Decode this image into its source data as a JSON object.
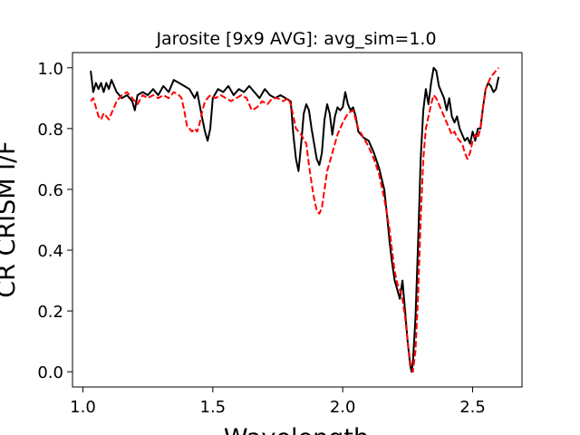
{
  "chart_data": {
    "type": "line",
    "title": "Jarosite [9x9 AVG]: avg_sim=1.0",
    "xlabel": "Wavelength",
    "ylabel": "CR CRISM I/F",
    "xlim": [
      0.96,
      2.69
    ],
    "ylim": [
      -0.05,
      1.05
    ],
    "xticks": [
      1.0,
      1.5,
      2.0,
      2.5
    ],
    "xtick_labels": [
      "1.0",
      "1.5",
      "2.0",
      "2.5"
    ],
    "yticks": [
      0.0,
      0.2,
      0.4,
      0.6,
      0.8,
      1.0
    ],
    "ytick_labels": [
      "0.0",
      "0.2",
      "0.4",
      "0.6",
      "0.8",
      "1.0"
    ],
    "grid": false,
    "series": [
      {
        "style": "solid",
        "color": "#000000",
        "points": [
          [
            1.03,
            0.99
          ],
          [
            1.04,
            0.92
          ],
          [
            1.05,
            0.95
          ],
          [
            1.06,
            0.93
          ],
          [
            1.07,
            0.95
          ],
          [
            1.08,
            0.92
          ],
          [
            1.09,
            0.95
          ],
          [
            1.1,
            0.93
          ],
          [
            1.11,
            0.96
          ],
          [
            1.12,
            0.94
          ],
          [
            1.13,
            0.92
          ],
          [
            1.15,
            0.9
          ],
          [
            1.17,
            0.91
          ],
          [
            1.19,
            0.89
          ],
          [
            1.2,
            0.86
          ],
          [
            1.21,
            0.91
          ],
          [
            1.23,
            0.92
          ],
          [
            1.25,
            0.91
          ],
          [
            1.27,
            0.93
          ],
          [
            1.29,
            0.91
          ],
          [
            1.31,
            0.94
          ],
          [
            1.33,
            0.92
          ],
          [
            1.35,
            0.96
          ],
          [
            1.37,
            0.95
          ],
          [
            1.39,
            0.94
          ],
          [
            1.41,
            0.93
          ],
          [
            1.43,
            0.9
          ],
          [
            1.44,
            0.92
          ],
          [
            1.46,
            0.83
          ],
          [
            1.47,
            0.79
          ],
          [
            1.48,
            0.76
          ],
          [
            1.49,
            0.8
          ],
          [
            1.5,
            0.9
          ],
          [
            1.52,
            0.93
          ],
          [
            1.54,
            0.92
          ],
          [
            1.56,
            0.94
          ],
          [
            1.58,
            0.91
          ],
          [
            1.6,
            0.93
          ],
          [
            1.62,
            0.92
          ],
          [
            1.64,
            0.94
          ],
          [
            1.66,
            0.92
          ],
          [
            1.68,
            0.9
          ],
          [
            1.7,
            0.93
          ],
          [
            1.72,
            0.91
          ],
          [
            1.74,
            0.9
          ],
          [
            1.76,
            0.91
          ],
          [
            1.78,
            0.9
          ],
          [
            1.8,
            0.89
          ],
          [
            1.81,
            0.78
          ],
          [
            1.82,
            0.7
          ],
          [
            1.83,
            0.66
          ],
          [
            1.84,
            0.75
          ],
          [
            1.85,
            0.85
          ],
          [
            1.86,
            0.88
          ],
          [
            1.87,
            0.86
          ],
          [
            1.88,
            0.8
          ],
          [
            1.89,
            0.75
          ],
          [
            1.9,
            0.7
          ],
          [
            1.91,
            0.68
          ],
          [
            1.92,
            0.72
          ],
          [
            1.93,
            0.83
          ],
          [
            1.94,
            0.88
          ],
          [
            1.95,
            0.85
          ],
          [
            1.96,
            0.78
          ],
          [
            1.97,
            0.84
          ],
          [
            1.98,
            0.87
          ],
          [
            1.99,
            0.86
          ],
          [
            2.0,
            0.87
          ],
          [
            2.01,
            0.92
          ],
          [
            2.02,
            0.88
          ],
          [
            2.03,
            0.86
          ],
          [
            2.04,
            0.87
          ],
          [
            2.05,
            0.84
          ],
          [
            2.06,
            0.79
          ],
          [
            2.08,
            0.77
          ],
          [
            2.1,
            0.76
          ],
          [
            2.12,
            0.72
          ],
          [
            2.14,
            0.67
          ],
          [
            2.16,
            0.6
          ],
          [
            2.17,
            0.52
          ],
          [
            2.18,
            0.43
          ],
          [
            2.19,
            0.36
          ],
          [
            2.2,
            0.3
          ],
          [
            2.21,
            0.27
          ],
          [
            2.22,
            0.24
          ],
          [
            2.23,
            0.3
          ],
          [
            2.24,
            0.2
          ],
          [
            2.25,
            0.1
          ],
          [
            2.26,
            0.02
          ],
          [
            2.265,
            0.0
          ],
          [
            2.27,
            0.03
          ],
          [
            2.28,
            0.18
          ],
          [
            2.29,
            0.42
          ],
          [
            2.3,
            0.7
          ],
          [
            2.31,
            0.86
          ],
          [
            2.32,
            0.93
          ],
          [
            2.33,
            0.88
          ],
          [
            2.34,
            0.95
          ],
          [
            2.35,
            1.0
          ],
          [
            2.36,
            0.99
          ],
          [
            2.37,
            0.94
          ],
          [
            2.38,
            0.92
          ],
          [
            2.39,
            0.9
          ],
          [
            2.4,
            0.86
          ],
          [
            2.41,
            0.9
          ],
          [
            2.42,
            0.84
          ],
          [
            2.43,
            0.82
          ],
          [
            2.44,
            0.84
          ],
          [
            2.45,
            0.8
          ],
          [
            2.46,
            0.78
          ],
          [
            2.47,
            0.76
          ],
          [
            2.48,
            0.77
          ],
          [
            2.49,
            0.75
          ],
          [
            2.5,
            0.79
          ],
          [
            2.51,
            0.76
          ],
          [
            2.52,
            0.8
          ],
          [
            2.53,
            0.8
          ],
          [
            2.54,
            0.87
          ],
          [
            2.55,
            0.93
          ],
          [
            2.56,
            0.95
          ],
          [
            2.57,
            0.94
          ],
          [
            2.58,
            0.92
          ],
          [
            2.59,
            0.93
          ],
          [
            2.6,
            0.97
          ]
        ]
      },
      {
        "style": "dashed",
        "color": "#ff0000",
        "points": [
          [
            1.03,
            0.89
          ],
          [
            1.04,
            0.9
          ],
          [
            1.05,
            0.87
          ],
          [
            1.06,
            0.84
          ],
          [
            1.07,
            0.83
          ],
          [
            1.08,
            0.85
          ],
          [
            1.09,
            0.84
          ],
          [
            1.1,
            0.83
          ],
          [
            1.11,
            0.85
          ],
          [
            1.12,
            0.87
          ],
          [
            1.13,
            0.89
          ],
          [
            1.15,
            0.91
          ],
          [
            1.17,
            0.92
          ],
          [
            1.19,
            0.9
          ],
          [
            1.21,
            0.88
          ],
          [
            1.23,
            0.91
          ],
          [
            1.25,
            0.9
          ],
          [
            1.27,
            0.91
          ],
          [
            1.29,
            0.9
          ],
          [
            1.31,
            0.91
          ],
          [
            1.33,
            0.9
          ],
          [
            1.35,
            0.92
          ],
          [
            1.37,
            0.91
          ],
          [
            1.38,
            0.9
          ],
          [
            1.39,
            0.86
          ],
          [
            1.4,
            0.81
          ],
          [
            1.41,
            0.8
          ],
          [
            1.42,
            0.79
          ],
          [
            1.43,
            0.8
          ],
          [
            1.44,
            0.79
          ],
          [
            1.45,
            0.82
          ],
          [
            1.46,
            0.86
          ],
          [
            1.47,
            0.89
          ],
          [
            1.49,
            0.91
          ],
          [
            1.51,
            0.9
          ],
          [
            1.53,
            0.91
          ],
          [
            1.55,
            0.9
          ],
          [
            1.57,
            0.89
          ],
          [
            1.59,
            0.9
          ],
          [
            1.61,
            0.91
          ],
          [
            1.63,
            0.9
          ],
          [
            1.64,
            0.88
          ],
          [
            1.65,
            0.86
          ],
          [
            1.67,
            0.87
          ],
          [
            1.69,
            0.89
          ],
          [
            1.71,
            0.88
          ],
          [
            1.73,
            0.9
          ],
          [
            1.75,
            0.9
          ],
          [
            1.77,
            0.89
          ],
          [
            1.79,
            0.9
          ],
          [
            1.8,
            0.88
          ],
          [
            1.82,
            0.8
          ],
          [
            1.84,
            0.78
          ],
          [
            1.86,
            0.75
          ],
          [
            1.87,
            0.68
          ],
          [
            1.88,
            0.62
          ],
          [
            1.89,
            0.57
          ],
          [
            1.9,
            0.53
          ],
          [
            1.91,
            0.52
          ],
          [
            1.92,
            0.54
          ],
          [
            1.93,
            0.6
          ],
          [
            1.94,
            0.66
          ],
          [
            1.96,
            0.72
          ],
          [
            1.98,
            0.78
          ],
          [
            2.0,
            0.82
          ],
          [
            2.02,
            0.85
          ],
          [
            2.04,
            0.86
          ],
          [
            2.05,
            0.83
          ],
          [
            2.06,
            0.8
          ],
          [
            2.08,
            0.77
          ],
          [
            2.1,
            0.74
          ],
          [
            2.12,
            0.7
          ],
          [
            2.14,
            0.65
          ],
          [
            2.16,
            0.57
          ],
          [
            2.18,
            0.47
          ],
          [
            2.19,
            0.4
          ],
          [
            2.2,
            0.33
          ],
          [
            2.21,
            0.29
          ],
          [
            2.22,
            0.27
          ],
          [
            2.23,
            0.24
          ],
          [
            2.24,
            0.18
          ],
          [
            2.25,
            0.1
          ],
          [
            2.26,
            0.03
          ],
          [
            2.27,
            0.0
          ],
          [
            2.28,
            0.07
          ],
          [
            2.29,
            0.25
          ],
          [
            2.3,
            0.5
          ],
          [
            2.31,
            0.7
          ],
          [
            2.32,
            0.8
          ],
          [
            2.33,
            0.84
          ],
          [
            2.34,
            0.88
          ],
          [
            2.35,
            0.91
          ],
          [
            2.36,
            0.9
          ],
          [
            2.37,
            0.88
          ],
          [
            2.38,
            0.86
          ],
          [
            2.39,
            0.84
          ],
          [
            2.4,
            0.82
          ],
          [
            2.41,
            0.8
          ],
          [
            2.42,
            0.78
          ],
          [
            2.43,
            0.79
          ],
          [
            2.44,
            0.77
          ],
          [
            2.45,
            0.76
          ],
          [
            2.46,
            0.75
          ],
          [
            2.47,
            0.72
          ],
          [
            2.48,
            0.7
          ],
          [
            2.49,
            0.72
          ],
          [
            2.5,
            0.76
          ],
          [
            2.51,
            0.78
          ],
          [
            2.52,
            0.77
          ],
          [
            2.53,
            0.8
          ],
          [
            2.54,
            0.87
          ],
          [
            2.55,
            0.93
          ],
          [
            2.56,
            0.95
          ],
          [
            2.57,
            0.97
          ],
          [
            2.58,
            0.98
          ],
          [
            2.59,
            0.99
          ],
          [
            2.6,
            1.0
          ]
        ]
      }
    ]
  }
}
